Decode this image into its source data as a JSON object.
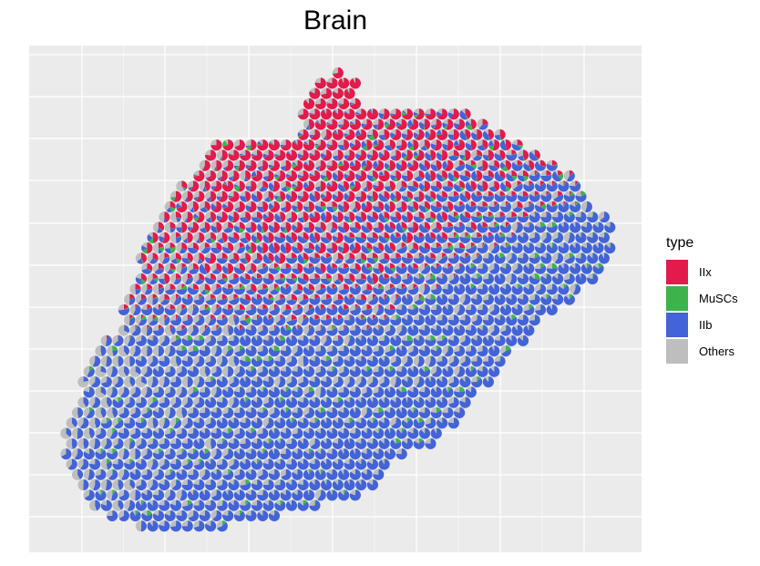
{
  "chart_data": {
    "type": "scatter",
    "subtype": "spatial scatter of pie glyphs (cell-type proportions per spot)",
    "title": "Brain",
    "xlabel": "",
    "ylabel": "",
    "grid": true,
    "tick_labels_shown": false,
    "legend": {
      "title": "type",
      "placement": "right",
      "entries": [
        {
          "name": "IIx",
          "color": "#E31A4B"
        },
        {
          "name": "MuSCs",
          "color": "#3CB44B"
        },
        {
          "name": "IIb",
          "color": "#4363D8"
        },
        {
          "name": "Others",
          "color": "#BEBEBE"
        }
      ]
    },
    "series": [
      {
        "name": "IIx",
        "color": "#E31A4B",
        "dominant_region": "upper tissue"
      },
      {
        "name": "MuSCs",
        "color": "#3CB44B",
        "dominant_region": "scattered, minor fraction"
      },
      {
        "name": "IIb",
        "color": "#4363D8",
        "dominant_region": "lower and right tissue"
      },
      {
        "name": "Others",
        "color": "#BEBEBE",
        "dominant_region": "left margin and boundary"
      }
    ]
  }
}
